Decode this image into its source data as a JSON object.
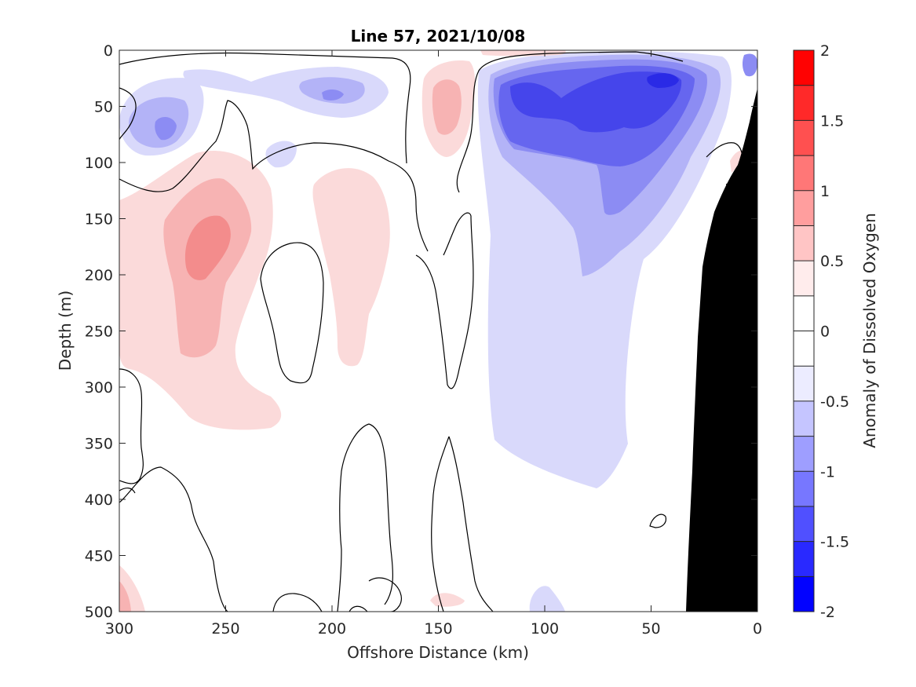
{
  "chart_data": {
    "type": "heatmap",
    "title": "Line 57, 2021/10/08",
    "xlabel": "Offshore Distance (km)",
    "ylabel": "Depth (m)",
    "colorbar_label": "Anomaly of Dissolved Oxygen",
    "xlim": [
      300,
      0
    ],
    "ylim": [
      0,
      500
    ],
    "x_direction": "reversed",
    "y_direction": "depth increasing downward",
    "x_ticks": [
      "300",
      "250",
      "200",
      "150",
      "100",
      "50",
      "0"
    ],
    "y_ticks": [
      "0",
      "50",
      "100",
      "150",
      "200",
      "250",
      "300",
      "350",
      "400",
      "450",
      "500"
    ],
    "colorbar_ticks": [
      "2",
      "1.5",
      "1",
      "0.5",
      "0",
      "-0.5",
      "-1",
      "-1.5",
      "-2"
    ],
    "colorbar_range": [
      -2,
      2
    ],
    "colorbar_levels": 16,
    "colors": {
      "positive_max": "#ff0000",
      "negative_max": "#0000ff",
      "neutral": "#ffffff",
      "bathymetry": "#000000",
      "zero_contour": "#000000"
    },
    "zero_contour": true,
    "bathymetry_mask": true,
    "features": [
      {
        "name": "subsurface-low-nearshore",
        "x_center": 70,
        "depth_center": 55,
        "peak_value": -1.6
      },
      {
        "name": "subsurface-high-offshore",
        "x_center": 258,
        "depth_center": 180,
        "peak_value": 0.8
      },
      {
        "name": "low-offshore-shallow",
        "x_center": 280,
        "depth_center": 70,
        "peak_value": -0.8
      },
      {
        "name": "high-mid-column",
        "x_center": 185,
        "depth_center": 180,
        "peak_value": 0.4
      },
      {
        "name": "high-near-surface",
        "x_center": 145,
        "depth_center": 65,
        "peak_value": 0.6
      }
    ]
  }
}
